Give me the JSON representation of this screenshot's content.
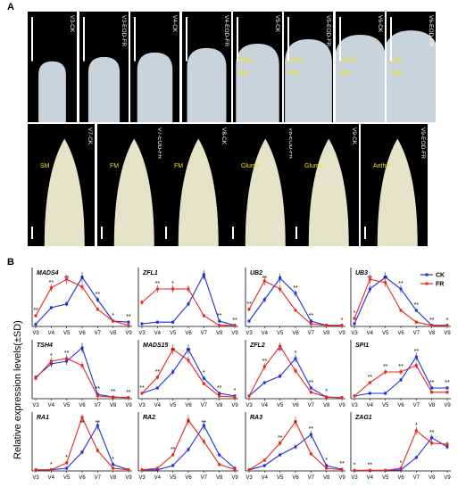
{
  "panel_labels": {
    "a": "A",
    "b": "B"
  },
  "y_axis_label": "Relative expression levels(±SD)",
  "stages": [
    "V3",
    "V4",
    "V5",
    "V6",
    "V7",
    "V8",
    "V9"
  ],
  "legend": {
    "ck": "CK",
    "fr": "FR"
  },
  "colors": {
    "ck": "#1f2fdc",
    "fr": "#e8271c"
  },
  "photo_row1": [
    {
      "label": "V3-CK",
      "annotations": []
    },
    {
      "label": "V3-EOD-FR",
      "annotations": []
    },
    {
      "label": "V4-CK",
      "annotations": []
    },
    {
      "label": "V4-EOD-FR",
      "annotations": []
    },
    {
      "label": "V5-CK",
      "annotations": [
        "SPM",
        "BM"
      ]
    },
    {
      "label": "V5-EOD-FR",
      "annotations": [
        "SPM",
        "BM"
      ]
    },
    {
      "label": "V6-CK",
      "annotations": [
        "SPM",
        "BM"
      ]
    },
    {
      "label": "V6-EOD-FR",
      "annotations": [
        "SM",
        "BM"
      ]
    }
  ],
  "photo_row2": [
    {
      "label": "V7-CK",
      "annotations": [
        "SM"
      ]
    },
    {
      "label": "V7-EOD-FR",
      "annotations": [
        "FM"
      ]
    },
    {
      "label": "V8-CK",
      "annotations": [
        "FM"
      ]
    },
    {
      "label": "V8-EOD-FR",
      "annotations": [
        "Glume"
      ]
    },
    {
      "label": "V9-CK",
      "annotations": [
        "Glume"
      ]
    },
    {
      "label": "V9-EOD-FR",
      "annotations": [
        "Anther"
      ]
    }
  ],
  "chart_data": [
    {
      "type": "line",
      "title": "MADS4",
      "title_italic": true,
      "categories": [
        "V3",
        "V4",
        "V5",
        "V6",
        "V7",
        "V8",
        "V9"
      ],
      "ylim": [
        0,
        1
      ],
      "series": [
        {
          "name": "CK",
          "values": [
            0.04,
            0.35,
            0.42,
            0.92,
            0.5,
            0.1,
            0.08
          ]
        },
        {
          "name": "FR",
          "values": [
            0.2,
            0.72,
            0.88,
            0.74,
            0.32,
            0.1,
            0.02
          ]
        }
      ],
      "sig": [
        [
          "**",
          0
        ],
        [
          "**",
          1
        ],
        [
          "**",
          2
        ],
        [
          "*",
          3
        ],
        [
          "**",
          4
        ],
        [
          "*",
          5
        ],
        [
          "**",
          6
        ]
      ]
    },
    {
      "type": "line",
      "title": "ZFL1",
      "title_italic": true,
      "categories": [
        "V3",
        "V4",
        "V5",
        "V6",
        "V7",
        "V8",
        "V9"
      ],
      "ylim": [
        0,
        1
      ],
      "series": [
        {
          "name": "CK",
          "values": [
            0.05,
            0.08,
            0.08,
            0.42,
            0.97,
            0.1,
            0.02
          ]
        },
        {
          "name": "FR",
          "values": [
            0.45,
            0.7,
            0.7,
            0.7,
            0.2,
            0.02,
            0.02
          ]
        }
      ],
      "sig": [
        [
          "**",
          1
        ],
        [
          "*",
          2
        ],
        [
          "*",
          4
        ],
        [
          "**",
          5
        ],
        [
          "**",
          6
        ]
      ]
    },
    {
      "type": "line",
      "title": "UB2",
      "title_italic": true,
      "categories": [
        "V3",
        "V4",
        "V5",
        "V6",
        "V7",
        "V8",
        "V9"
      ],
      "ylim": [
        0,
        1
      ],
      "series": [
        {
          "name": "CK",
          "values": [
            0.1,
            0.5,
            0.9,
            0.62,
            0.1,
            0.02,
            0.02
          ]
        },
        {
          "name": "FR",
          "values": [
            0.32,
            0.85,
            0.7,
            0.3,
            0.05,
            0.02,
            0.02
          ]
        }
      ],
      "sig": [
        [
          "**",
          0
        ],
        [
          "**",
          1
        ],
        [
          "*",
          2
        ],
        [
          "**",
          3
        ],
        [
          "**",
          4
        ],
        [
          "*",
          6
        ]
      ]
    },
    {
      "type": "line",
      "title": "UB3",
      "title_italic": true,
      "categories": [
        "V3",
        "V4",
        "V5",
        "V6",
        "V7",
        "V8",
        "V9"
      ],
      "ylim": [
        0,
        1
      ],
      "series": [
        {
          "name": "CK",
          "values": [
            0.05,
            0.7,
            0.92,
            0.7,
            0.3,
            0.02,
            0.02
          ]
        },
        {
          "name": "FR",
          "values": [
            0.15,
            0.88,
            0.82,
            0.3,
            0.08,
            0.02,
            0.02
          ]
        }
      ],
      "sig": [
        [
          "*",
          0
        ],
        [
          "**",
          1
        ],
        [
          "**",
          2
        ],
        [
          "**",
          3
        ],
        [
          "**",
          4
        ],
        [
          "**",
          5
        ],
        [
          "*",
          6
        ]
      ]
    },
    {
      "type": "line",
      "title": "TSH4",
      "title_italic": true,
      "categories": [
        "V3",
        "V4",
        "V5",
        "V6",
        "V7",
        "V8",
        "V9"
      ],
      "ylim": [
        0,
        1
      ],
      "series": [
        {
          "name": "CK",
          "values": [
            0.4,
            0.65,
            0.7,
            0.95,
            0.08,
            0.03,
            0.02
          ]
        },
        {
          "name": "FR",
          "values": [
            0.38,
            0.7,
            0.75,
            0.62,
            0.05,
            0.03,
            0.02
          ]
        }
      ],
      "sig": [
        [
          "*",
          1
        ],
        [
          "**",
          2
        ],
        [
          "*",
          3
        ],
        [
          "**",
          4
        ],
        [
          "**",
          5
        ],
        [
          "**",
          6
        ]
      ]
    },
    {
      "type": "line",
      "title": "MADS15",
      "title_italic": true,
      "categories": [
        "V3",
        "V4",
        "V5",
        "V6",
        "V7",
        "V8",
        "V9"
      ],
      "ylim": [
        0,
        1
      ],
      "series": [
        {
          "name": "CK",
          "values": [
            0.1,
            0.2,
            0.5,
            0.92,
            0.38,
            0.1,
            0.05
          ]
        },
        {
          "name": "FR",
          "values": [
            0.1,
            0.4,
            0.92,
            0.72,
            0.28,
            0.05,
            0.03
          ]
        }
      ],
      "sig": [
        [
          "**",
          0
        ],
        [
          "**",
          1
        ],
        [
          "**",
          2
        ],
        [
          "**",
          3
        ],
        [
          "*",
          4
        ],
        [
          "**",
          5
        ],
        [
          "*",
          6
        ]
      ]
    },
    {
      "type": "line",
      "title": "ZFL2",
      "title_italic": true,
      "categories": [
        "V3",
        "V4",
        "V5",
        "V6",
        "V7",
        "V8",
        "V9"
      ],
      "ylim": [
        0,
        1
      ],
      "series": [
        {
          "name": "CK",
          "values": [
            0.05,
            0.3,
            0.42,
            0.75,
            0.2,
            0.03,
            0.02
          ]
        },
        {
          "name": "FR",
          "values": [
            0.05,
            0.6,
            0.98,
            0.52,
            0.12,
            0.03,
            0.02
          ]
        }
      ],
      "sig": [
        [
          "**",
          1
        ],
        [
          "**",
          2
        ],
        [
          "*",
          3
        ],
        [
          "**",
          4
        ],
        [
          "*",
          5
        ]
      ]
    },
    {
      "type": "line",
      "title": "SPI1",
      "title_italic": true,
      "categories": [
        "V3",
        "V4",
        "V5",
        "V6",
        "V7",
        "V8",
        "V9"
      ],
      "ylim": [
        0,
        1
      ],
      "series": [
        {
          "name": "CK",
          "values": [
            0.05,
            0.1,
            0.1,
            0.35,
            0.78,
            0.2,
            0.2
          ]
        },
        {
          "name": "FR",
          "values": [
            0.05,
            0.3,
            0.5,
            0.5,
            0.62,
            0.12,
            0.12
          ]
        }
      ],
      "sig": [
        [
          "**",
          1
        ],
        [
          "**",
          2
        ],
        [
          "**",
          3
        ],
        [
          "**",
          4
        ],
        [
          "**",
          5
        ],
        [
          "**",
          6
        ]
      ]
    },
    {
      "type": "line",
      "title": "RA1",
      "title_italic": true,
      "categories": [
        "V3",
        "V4",
        "V5",
        "V6",
        "V7",
        "V8",
        "V9"
      ],
      "ylim": [
        0,
        1
      ],
      "series": [
        {
          "name": "CK",
          "values": [
            0.02,
            0.02,
            0.05,
            0.35,
            0.85,
            0.12,
            0.02
          ]
        },
        {
          "name": "FR",
          "values": [
            0.02,
            0.02,
            0.15,
            1.0,
            0.38,
            0.05,
            0.02
          ]
        }
      ],
      "sig": [
        [
          "*",
          1
        ],
        [
          "*",
          2
        ],
        [
          "**",
          3
        ],
        [
          "**",
          4
        ],
        [
          "*",
          5
        ]
      ]
    },
    {
      "type": "line",
      "title": "RA2",
      "title_italic": true,
      "categories": [
        "V3",
        "V4",
        "V5",
        "V6",
        "V7",
        "V8",
        "V9"
      ],
      "ylim": [
        0,
        1
      ],
      "series": [
        {
          "name": "CK",
          "values": [
            0.02,
            0.02,
            0.1,
            0.4,
            0.85,
            0.3,
            0.05
          ]
        },
        {
          "name": "FR",
          "values": [
            0.02,
            0.05,
            0.3,
            0.95,
            0.55,
            0.12,
            0.03
          ]
        }
      ],
      "sig": [
        [
          "**",
          2
        ],
        [
          "*",
          3
        ],
        [
          "**",
          4
        ]
      ]
    },
    {
      "type": "line",
      "title": "RA3",
      "title_italic": true,
      "categories": [
        "V3",
        "V4",
        "V5",
        "V6",
        "V7",
        "V8",
        "V9"
      ],
      "ylim": [
        0,
        1
      ],
      "series": [
        {
          "name": "CK",
          "values": [
            0.02,
            0.1,
            0.3,
            0.45,
            0.68,
            0.1,
            0.03
          ]
        },
        {
          "name": "FR",
          "values": [
            0.02,
            0.2,
            0.52,
            0.92,
            0.32,
            0.05,
            0.02
          ]
        }
      ],
      "sig": [
        [
          "**",
          2
        ],
        [
          "*",
          3
        ],
        [
          "**",
          4
        ],
        [
          "*",
          5
        ],
        [
          "**",
          6
        ]
      ]
    },
    {
      "type": "line",
      "title": "ZAG1",
      "title_italic": true,
      "categories": [
        "V3",
        "V4",
        "V5",
        "V6",
        "V7",
        "V8",
        "V9"
      ],
      "ylim": [
        0,
        1
      ],
      "series": [
        {
          "name": "CK",
          "values": [
            0.01,
            0.01,
            0.01,
            0.02,
            0.25,
            0.62,
            0.45
          ]
        },
        {
          "name": "FR",
          "values": [
            0.01,
            0.01,
            0.01,
            0.05,
            0.75,
            0.52,
            0.5
          ]
        }
      ],
      "sig": [
        [
          "*",
          0
        ],
        [
          "**",
          1
        ],
        [
          "*",
          3
        ],
        [
          "*",
          4
        ],
        [
          "**",
          5
        ]
      ]
    }
  ]
}
